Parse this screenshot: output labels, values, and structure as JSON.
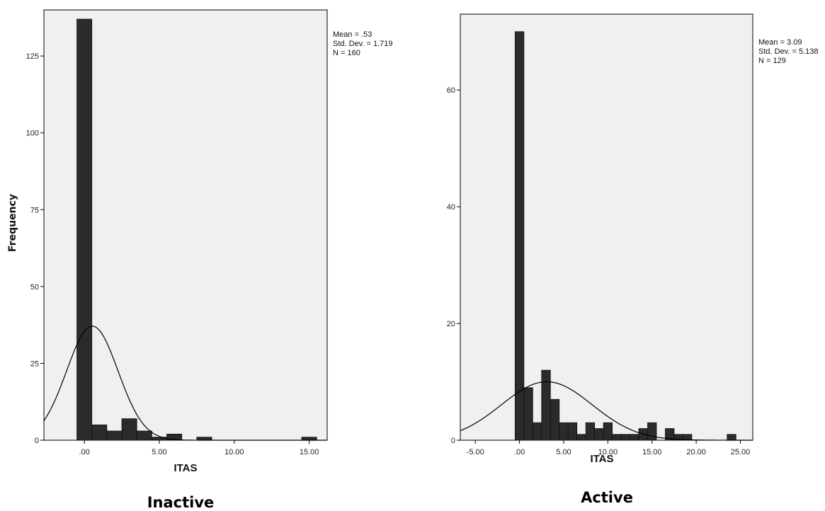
{
  "chart_data": [
    {
      "type": "bar",
      "caption": "Inactive",
      "xlabel": "ITAS",
      "ylabel": "Frequency",
      "stats": [
        "Mean = .53",
        "Std. Dev. = 1.719",
        "N = 160"
      ],
      "mean": 0.53,
      "std_dev": 1.719,
      "n": 160,
      "bin_width": 1,
      "xlim": [
        -2.7,
        16.2
      ],
      "ylim": [
        0,
        140
      ],
      "x_ticks": [
        0,
        5,
        10,
        15
      ],
      "x_tick_labels": [
        ".00",
        "5.00",
        "10.00",
        "15.00"
      ],
      "y_ticks": [
        0,
        25,
        50,
        75,
        100,
        125
      ],
      "y_tick_labels": [
        "0",
        "25",
        "50",
        "75",
        "100",
        "125"
      ],
      "bins": [
        {
          "x": 0,
          "count": 137
        },
        {
          "x": 1,
          "count": 5
        },
        {
          "x": 2,
          "count": 3
        },
        {
          "x": 3,
          "count": 7
        },
        {
          "x": 4,
          "count": 3
        },
        {
          "x": 5,
          "count": 1
        },
        {
          "x": 6,
          "count": 2
        },
        {
          "x": 8,
          "count": 1
        },
        {
          "x": 15,
          "count": 1
        }
      ],
      "normal_curve": true,
      "grid": false
    },
    {
      "type": "bar",
      "caption": "Active",
      "xlabel": "ITAS",
      "ylabel": "",
      "stats": [
        "Mean = 3.09",
        "Std. Dev. = 5.138",
        "N = 129"
      ],
      "mean": 3.09,
      "std_dev": 5.138,
      "n": 129,
      "bin_width": 1,
      "xlim": [
        -6.7,
        26.4
      ],
      "ylim": [
        0,
        73
      ],
      "x_ticks": [
        -5,
        0,
        5,
        10,
        15,
        20,
        25
      ],
      "x_tick_labels": [
        "-5.00",
        ".00",
        "5.00",
        "10.00",
        "15.00",
        "20.00",
        "25.00"
      ],
      "y_ticks": [
        0,
        20,
        40,
        60
      ],
      "y_tick_labels": [
        "0",
        "20",
        "40",
        "60"
      ],
      "bins": [
        {
          "x": 0,
          "count": 70
        },
        {
          "x": 1,
          "count": 9
        },
        {
          "x": 2,
          "count": 3
        },
        {
          "x": 3,
          "count": 12
        },
        {
          "x": 4,
          "count": 7
        },
        {
          "x": 5,
          "count": 3
        },
        {
          "x": 6,
          "count": 3
        },
        {
          "x": 7,
          "count": 1
        },
        {
          "x": 8,
          "count": 3
        },
        {
          "x": 9,
          "count": 2
        },
        {
          "x": 10,
          "count": 3
        },
        {
          "x": 11,
          "count": 1
        },
        {
          "x": 12,
          "count": 1
        },
        {
          "x": 13,
          "count": 1
        },
        {
          "x": 14,
          "count": 2
        },
        {
          "x": 15,
          "count": 3
        },
        {
          "x": 17,
          "count": 2
        },
        {
          "x": 18,
          "count": 1
        },
        {
          "x": 19,
          "count": 1
        },
        {
          "x": 24,
          "count": 1
        }
      ],
      "normal_curve": true,
      "grid": false
    }
  ],
  "colors": {
    "plot_background": "#f0f0f0",
    "bar_fill": "#2b2b2b",
    "bar_stroke": "#111111",
    "curve": "#000000",
    "axis": "#000000"
  }
}
